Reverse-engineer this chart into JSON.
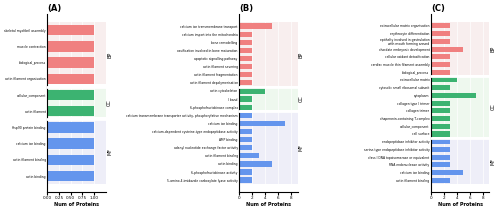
{
  "panel_A": {
    "title": "(A)",
    "BP": {
      "labels": [
        "skeletal myofibril assembly",
        "muscle contraction",
        "biological_process",
        "actin filament organisation"
      ],
      "values": [
        1.0,
        1.0,
        1.0,
        1.0
      ],
      "color": "#F08080"
    },
    "CC": {
      "labels": [
        "cellular_component",
        "actin filament"
      ],
      "values": [
        1.0,
        1.0
      ],
      "color": "#3CB371"
    },
    "MF": {
      "labels": [
        "Hsp90 protein binding",
        "calcium ion binding",
        "actin filament binding",
        "actin binding"
      ],
      "values": [
        1.0,
        1.0,
        1.0,
        1.0
      ],
      "color": "#6495ED"
    },
    "xlabel": "Num of Proteins",
    "xlim": [
      0,
      1.25
    ],
    "xticks": [
      0.0,
      0.25,
      0.5,
      0.75,
      1.0
    ]
  },
  "panel_B": {
    "title": "(B)",
    "BP": {
      "labels": [
        "calcium ion transmembrane transport",
        "calcium import into the mitochondria",
        "bone remodelling",
        "ossification involved in bone maturation",
        "apoptotic signalling pathway",
        "actin filament severing",
        "actin filament fragmentation",
        "actin filament depolymerisation"
      ],
      "values": [
        5,
        2,
        2,
        2,
        2,
        2,
        2,
        2
      ],
      "color": "#F08080"
    },
    "CC": {
      "labels": [
        "actin cytoskeleton",
        "I band",
        "6-phosphofructokinase complex"
      ],
      "values": [
        4,
        2,
        2
      ],
      "color": "#3CB371"
    },
    "MF": {
      "labels": [
        "calcium transmembrane transporter activity, phosphorylative mechanism",
        "calcium ion binding",
        "calcium-dependent cysteine-type endopeptidase activity",
        "AMP binding",
        "adenyl nucleotide exchange factor activity",
        "actin filament binding",
        "actin binding",
        "6-phosphofructokinase activity",
        "5-amino-4-imidazole carboxylate lyase activity"
      ],
      "values": [
        2,
        7,
        2,
        2,
        2,
        3,
        5,
        2,
        2
      ],
      "color": "#6495ED"
    },
    "xlabel": "Num of Proteins",
    "xlim": [
      0,
      9
    ],
    "xticks": [
      0,
      2,
      4,
      6,
      8
    ]
  },
  "panel_C": {
    "title": "(C)",
    "BP": {
      "labels": [
        "extracellular matrix organisation",
        "erythrocyte differentiation",
        "epithelty involved in gastrulation\nwith mouth forming around",
        "chordate embryonic development",
        "cellular oxidant detoxification",
        "cardiac muscle thin filament assembly",
        "biological_process"
      ],
      "values": [
        3,
        3,
        3,
        5,
        3,
        3,
        3
      ],
      "color": "#F08080"
    },
    "CC": {
      "labels": [
        "extracellular matrix",
        "cytosolic small ribosomal subunit",
        "cytoplasm",
        "collagen type I trimer",
        "collagen trimer",
        "chaperonin-containing T-complex",
        "cellular_component",
        "cell surface"
      ],
      "values": [
        4,
        3,
        7,
        3,
        3,
        3,
        3,
        3
      ],
      "color": "#3CB371"
    },
    "MF": {
      "labels": [
        "endopeptidase inhibitor activity",
        "serine-type endopeptidase inhibitor activity",
        "class I DNA topoisomerase or equivalent",
        "RNA endonuclease activity",
        "calcium ion binding",
        "actin filament binding"
      ],
      "values": [
        3,
        3,
        3,
        3,
        5,
        3
      ],
      "color": "#6495ED"
    },
    "xlabel": "Num of Proteins",
    "xlim": [
      0,
      9
    ],
    "xticks": [
      0,
      2,
      4,
      6,
      8
    ]
  },
  "section_bg": {
    "BP": "#F5EEEE",
    "CC": "#EEEEF5",
    "MF": "#EEF5EE"
  },
  "label_colors": {
    "BP": "#C06060",
    "CC": "#60A060",
    "MF": "#6060C0"
  }
}
